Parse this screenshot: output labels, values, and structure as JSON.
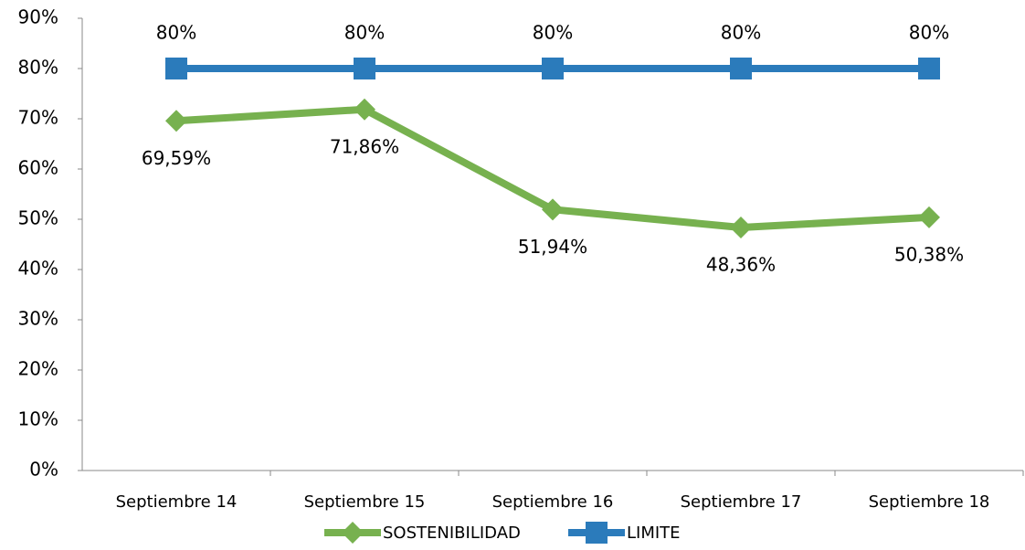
{
  "chart_data": {
    "type": "line",
    "categories": [
      "Septiembre 14",
      "Septiembre 15",
      "Septiembre 16",
      "Septiembre 17",
      "Septiembre 18"
    ],
    "series": [
      {
        "name": "SOSTENIBILIDAD",
        "color": "#77b14f",
        "values": [
          69.59,
          71.86,
          51.94,
          48.36,
          50.38
        ],
        "value_labels": [
          "69,59%",
          "71,86%",
          "51,94%",
          "48,36%",
          "50,38%"
        ],
        "marker": "diamond"
      },
      {
        "name": "LIMITE",
        "color": "#2b7bbb",
        "values": [
          80,
          80,
          80,
          80,
          80
        ],
        "value_labels": [
          "80%",
          "80%",
          "80%",
          "80%",
          "80%"
        ],
        "marker": "square"
      }
    ],
    "ylim": [
      0,
      90
    ],
    "yticks": [
      {
        "value": 0,
        "label": "0%"
      },
      {
        "value": 10,
        "label": "10%"
      },
      {
        "value": 20,
        "label": "20%"
      },
      {
        "value": 30,
        "label": "30%"
      },
      {
        "value": 40,
        "label": "40%"
      },
      {
        "value": 50,
        "label": "50%"
      },
      {
        "value": 60,
        "label": "60%"
      },
      {
        "value": 70,
        "label": "70%"
      },
      {
        "value": 80,
        "label": "80%"
      },
      {
        "value": 90,
        "label": "90%"
      }
    ],
    "grid": false,
    "legend": "bottom"
  }
}
